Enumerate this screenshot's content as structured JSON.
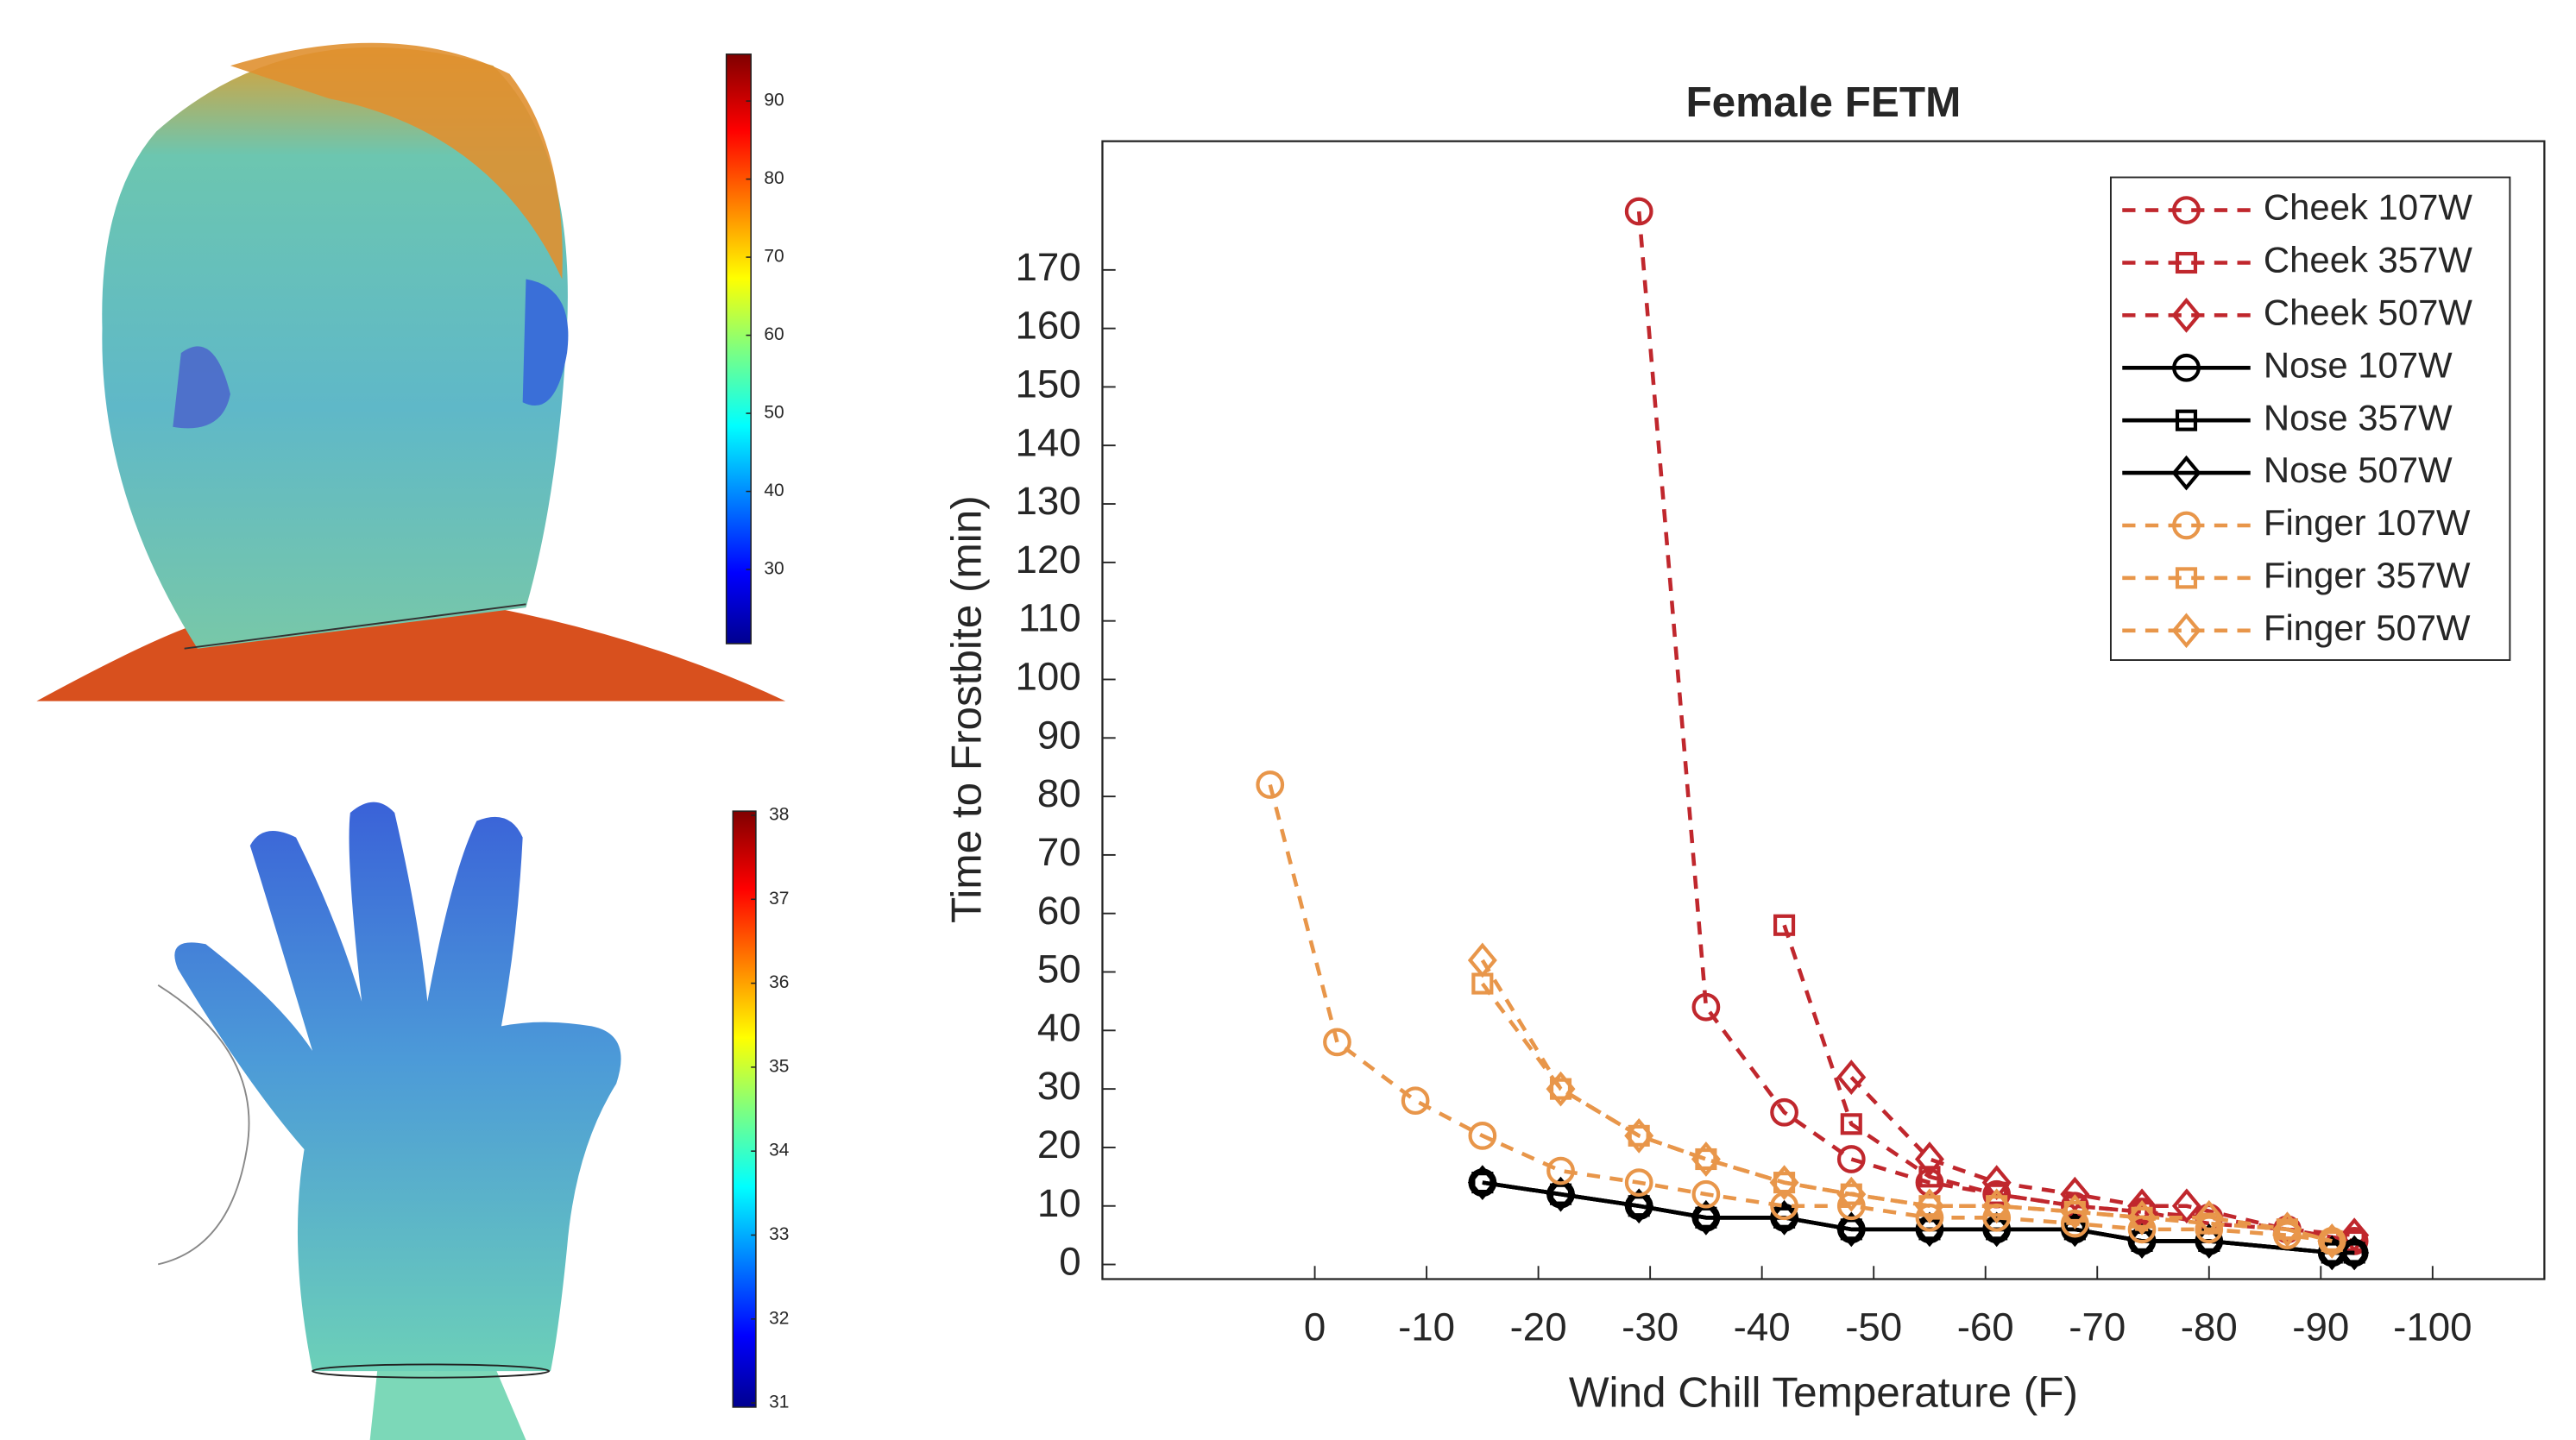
{
  "chart_data": {
    "type": "line",
    "title": "Female FETM",
    "xlabel": "Wind Chill Temperature (F)",
    "ylabel": "Time to Frostbite (min)",
    "xlim": [
      19,
      -110
    ],
    "ylim": [
      -2.5,
      192
    ],
    "xticks": [
      0,
      -10,
      -20,
      -30,
      -40,
      -50,
      -60,
      -70,
      -80,
      -90,
      -100
    ],
    "yticks": [
      0,
      10,
      20,
      30,
      40,
      50,
      60,
      70,
      80,
      90,
      100,
      110,
      120,
      130,
      140,
      150,
      160,
      170
    ],
    "grid": false,
    "legend": "upper right",
    "series": [
      {
        "name": "Cheek 107W",
        "color": "#c0272d",
        "marker": "circle",
        "linestyle": "dashed",
        "x": [
          -29,
          -35,
          -42,
          -48,
          -55,
          -61,
          -68,
          -74,
          -80,
          -87,
          -93
        ],
        "values": [
          180,
          44,
          26,
          18,
          14,
          12,
          10,
          9,
          8,
          6,
          4
        ]
      },
      {
        "name": "Cheek 357W",
        "color": "#c0272d",
        "marker": "square",
        "linestyle": "dashed",
        "x": [
          -42,
          -48,
          -55,
          -61,
          -68,
          -74,
          -80,
          -87,
          -93
        ],
        "values": [
          58,
          24,
          15,
          12,
          10,
          9,
          7,
          6,
          4
        ]
      },
      {
        "name": "Cheek 507W",
        "color": "#c0272d",
        "marker": "diamond",
        "linestyle": "dashed",
        "x": [
          -48,
          -55,
          -61,
          -68,
          -74,
          -78,
          -87,
          -93
        ],
        "values": [
          32,
          18,
          14,
          12,
          10,
          10,
          6,
          5
        ]
      },
      {
        "name": "Nose 107W",
        "color": "#000000",
        "marker": "circle",
        "linestyle": "solid",
        "x": [
          -15,
          -22,
          -29,
          -35,
          -42,
          -48,
          -55,
          -61,
          -68,
          -74,
          -80,
          -91,
          -93
        ],
        "values": [
          14,
          12,
          10,
          8,
          8,
          6,
          6,
          6,
          6,
          4,
          4,
          2,
          2
        ]
      },
      {
        "name": "Nose 357W",
        "color": "#000000",
        "marker": "square",
        "linestyle": "solid",
        "x": [
          -15,
          -22,
          -29,
          -35,
          -42,
          -48,
          -55,
          -61,
          -68,
          -74,
          -80,
          -91,
          -93
        ],
        "values": [
          14,
          12,
          10,
          8,
          8,
          6,
          6,
          6,
          6,
          4,
          4,
          2,
          2
        ]
      },
      {
        "name": "Nose 507W",
        "color": "#000000",
        "marker": "diamond",
        "linestyle": "solid",
        "x": [
          -15,
          -22,
          -29,
          -35,
          -42,
          -48,
          -55,
          -61,
          -68,
          -74,
          -80,
          -91,
          -93
        ],
        "values": [
          14,
          12,
          10,
          8,
          8,
          6,
          6,
          6,
          6,
          4,
          4,
          2,
          2
        ]
      },
      {
        "name": "Finger 107W",
        "color": "#e8964a",
        "marker": "circle",
        "linestyle": "dashed",
        "x": [
          4,
          -2,
          -9,
          -15,
          -22,
          -29,
          -35,
          -42,
          -48,
          -55,
          -61,
          -68,
          -74,
          -80,
          -87,
          -91
        ],
        "values": [
          82,
          38,
          28,
          22,
          16,
          14,
          12,
          10,
          10,
          8,
          8,
          7,
          6,
          6,
          5,
          4
        ]
      },
      {
        "name": "Finger 357W",
        "color": "#e8964a",
        "marker": "square",
        "linestyle": "dashed",
        "x": [
          -15,
          -22,
          -29,
          -35,
          -42,
          -48,
          -55,
          -61,
          -68,
          -74,
          -80,
          -87,
          -91
        ],
        "values": [
          48,
          30,
          22,
          18,
          14,
          12,
          10,
          10,
          9,
          8,
          7,
          6,
          4
        ]
      },
      {
        "name": "Finger 507W",
        "color": "#e8964a",
        "marker": "diamond",
        "linestyle": "dashed",
        "x": [
          -15,
          -22,
          -29,
          -35,
          -42,
          -48,
          -55,
          -61,
          -68,
          -74,
          -80,
          -87,
          -91
        ],
        "values": [
          52,
          30,
          22,
          18,
          14,
          12,
          10,
          10,
          9,
          8,
          8,
          6,
          4
        ]
      }
    ]
  },
  "colorbars": [
    {
      "lim": [
        20.5,
        96
      ],
      "ticks": [
        30,
        40,
        50,
        60,
        70,
        80,
        90
      ]
    },
    {
      "lim": [
        30.95,
        38.05
      ],
      "ticks": [
        31,
        32,
        33,
        34,
        35,
        36,
        37,
        38
      ]
    }
  ]
}
